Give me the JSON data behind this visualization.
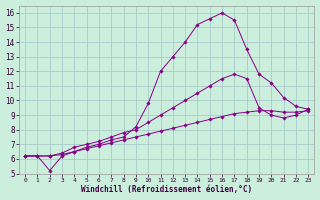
{
  "xlabel": "Windchill (Refroidissement éolien,°C)",
  "background_color": "#cceedd",
  "grid_color": "#aacccc",
  "line_color": "#880088",
  "xlim": [
    -0.5,
    23.5
  ],
  "ylim": [
    5,
    16.5
  ],
  "xticks": [
    0,
    1,
    2,
    3,
    4,
    5,
    6,
    7,
    8,
    9,
    10,
    11,
    12,
    13,
    14,
    15,
    16,
    17,
    18,
    19,
    20,
    21,
    22,
    23
  ],
  "yticks": [
    5,
    6,
    7,
    8,
    9,
    10,
    11,
    12,
    13,
    14,
    15,
    16
  ],
  "series1_x": [
    0,
    1,
    2,
    3,
    4,
    5,
    6,
    7,
    8,
    9,
    10,
    11,
    12,
    13,
    14,
    15,
    16,
    17,
    18,
    19,
    20,
    21,
    22,
    23
  ],
  "series1_y": [
    6.2,
    6.2,
    5.2,
    6.2,
    6.5,
    6.8,
    7.0,
    7.3,
    7.5,
    8.2,
    9.8,
    12.0,
    13.0,
    14.0,
    15.2,
    15.6,
    16.0,
    15.5,
    13.5,
    11.8,
    11.2,
    10.2,
    9.6,
    9.4
  ],
  "series2_x": [
    0,
    1,
    2,
    3,
    4,
    5,
    6,
    7,
    8,
    9,
    10,
    11,
    12,
    13,
    14,
    15,
    16,
    17,
    18,
    19,
    20,
    21,
    22,
    23
  ],
  "series2_y": [
    6.2,
    6.2,
    6.2,
    6.4,
    6.8,
    7.0,
    7.2,
    7.5,
    7.8,
    8.0,
    8.5,
    9.0,
    9.5,
    10.0,
    10.5,
    11.0,
    11.5,
    11.8,
    11.5,
    9.5,
    9.0,
    8.8,
    9.0,
    9.4
  ],
  "series3_x": [
    0,
    1,
    2,
    3,
    4,
    5,
    6,
    7,
    8,
    9,
    10,
    11,
    12,
    13,
    14,
    15,
    16,
    17,
    18,
    19,
    20,
    21,
    22,
    23
  ],
  "series3_y": [
    6.2,
    6.2,
    6.2,
    6.3,
    6.5,
    6.7,
    6.9,
    7.1,
    7.3,
    7.5,
    7.7,
    7.9,
    8.1,
    8.3,
    8.5,
    8.7,
    8.9,
    9.1,
    9.2,
    9.3,
    9.3,
    9.2,
    9.2,
    9.3
  ]
}
